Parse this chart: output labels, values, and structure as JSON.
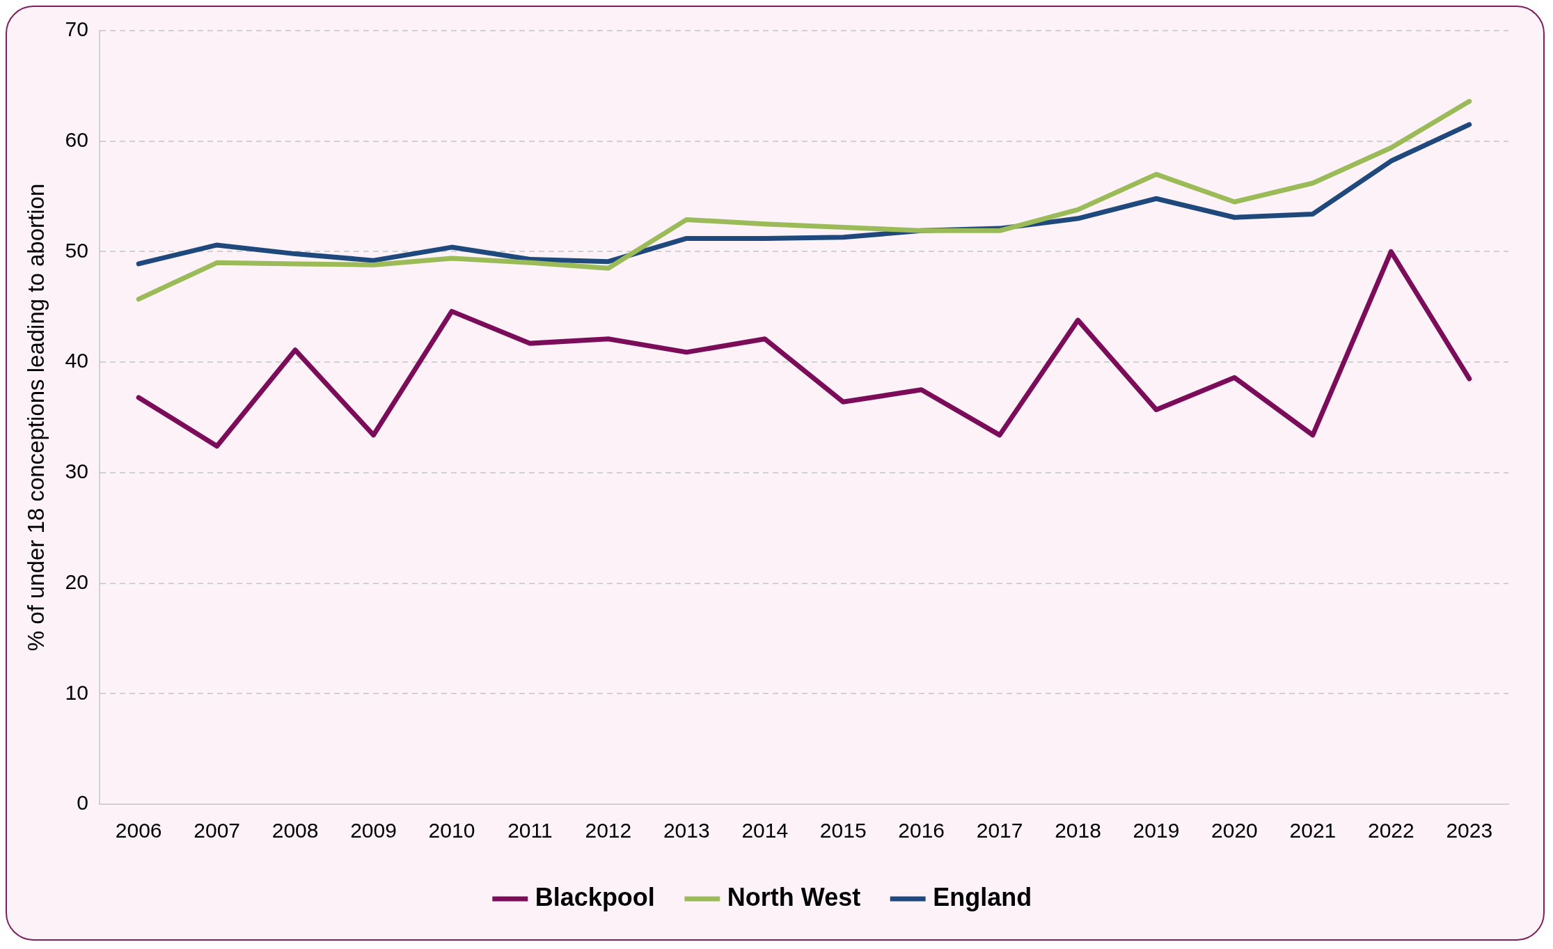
{
  "chart_data": {
    "type": "line",
    "ylabel": "% of under 18 conceptions leading to abortion",
    "categories": [
      "2006",
      "2007",
      "2008",
      "2009",
      "2010",
      "2011",
      "2012",
      "2013",
      "2014",
      "2015",
      "2016",
      "2017",
      "2018",
      "2019",
      "2020",
      "2021",
      "2022",
      "2023"
    ],
    "series": [
      {
        "name": "Blackpool",
        "color": "#7b0c5a",
        "values": [
          36.8,
          32.4,
          41.1,
          33.4,
          44.6,
          41.7,
          42.1,
          40.9,
          42.1,
          36.4,
          37.5,
          33.4,
          43.8,
          35.7,
          38.6,
          33.4,
          50.0,
          38.5
        ]
      },
      {
        "name": "North West",
        "color": "#9bbb59",
        "values": [
          45.7,
          49.0,
          48.9,
          48.8,
          49.4,
          49.0,
          48.5,
          52.9,
          52.5,
          52.2,
          51.9,
          51.9,
          53.8,
          57.0,
          54.5,
          56.2,
          59.4,
          63.6
        ]
      },
      {
        "name": "England",
        "color": "#1f497d",
        "values": [
          48.9,
          50.6,
          49.8,
          49.2,
          50.4,
          49.3,
          49.1,
          51.2,
          51.2,
          51.3,
          51.9,
          52.1,
          53.0,
          54.8,
          53.1,
          53.4,
          58.2,
          61.5
        ]
      }
    ],
    "ylim": [
      0,
      70
    ],
    "yticks": [
      0,
      10,
      20,
      30,
      40,
      50,
      60,
      70
    ],
    "grid": "y",
    "legend": "bottom",
    "marker": "none",
    "line_style": "solid"
  }
}
